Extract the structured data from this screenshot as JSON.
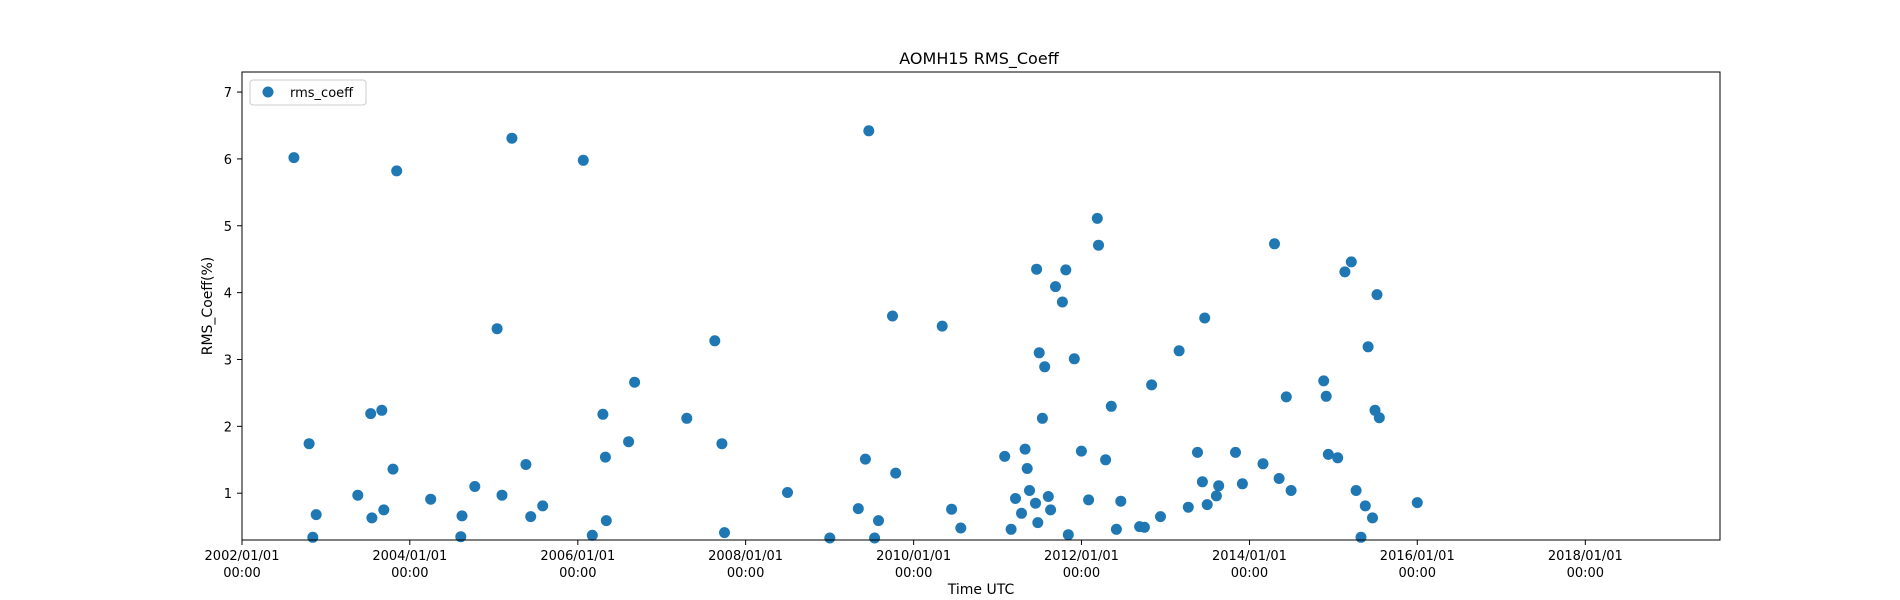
{
  "chart_data": {
    "type": "scatter",
    "title": "AOMH15 RMS_Coeff",
    "xlabel": "Time UTC",
    "ylabel": "RMS_Coeff(%)",
    "legend": {
      "placement": "top-left",
      "entries": [
        "rms_coeff"
      ]
    },
    "grid": false,
    "marker_color": "#1f77b4",
    "xlim": [
      "2002-01-01",
      "2019-08-10"
    ],
    "ylim": [
      0.3,
      7.3
    ],
    "xticks": [
      {
        "value": "2002-01-01",
        "date": "2002/01/01",
        "time": "00:00"
      },
      {
        "value": "2004-01-01",
        "date": "2004/01/01",
        "time": "00:00"
      },
      {
        "value": "2006-01-01",
        "date": "2006/01/01",
        "time": "00:00"
      },
      {
        "value": "2008-01-01",
        "date": "2008/01/01",
        "time": "00:00"
      },
      {
        "value": "2010-01-01",
        "date": "2010/01/01",
        "time": "00:00"
      },
      {
        "value": "2012-01-01",
        "date": "2012/01/01",
        "time": "00:00"
      },
      {
        "value": "2014-01-01",
        "date": "2014/01/01",
        "time": "00:00"
      },
      {
        "value": "2016-01-01",
        "date": "2016/01/01",
        "time": "00:00"
      },
      {
        "value": "2018-01-01",
        "date": "2018/01/01",
        "time": "00:00"
      }
    ],
    "yticks": [
      1,
      2,
      3,
      4,
      5,
      6,
      7
    ],
    "series": [
      {
        "name": "rms_coeff",
        "points": [
          [
            "2002-08-15",
            6.02
          ],
          [
            "2002-10-20",
            1.74
          ],
          [
            "2002-11-05",
            0.34
          ],
          [
            "2002-11-20",
            0.68
          ],
          [
            "2003-05-20",
            0.97
          ],
          [
            "2003-07-15",
            2.19
          ],
          [
            "2003-07-20",
            0.63
          ],
          [
            "2003-09-01",
            2.24
          ],
          [
            "2003-09-10",
            0.75
          ],
          [
            "2003-10-20",
            1.36
          ],
          [
            "2003-11-05",
            5.82
          ],
          [
            "2004-04-01",
            0.91
          ],
          [
            "2004-08-10",
            0.35
          ],
          [
            "2004-08-15",
            0.66
          ],
          [
            "2004-10-10",
            1.1
          ],
          [
            "2005-01-15",
            3.46
          ],
          [
            "2005-02-05",
            0.97
          ],
          [
            "2005-03-20",
            6.31
          ],
          [
            "2005-05-20",
            1.43
          ],
          [
            "2005-06-10",
            0.65
          ],
          [
            "2005-08-01",
            0.81
          ],
          [
            "2006-01-25",
            5.98
          ],
          [
            "2006-03-05",
            0.37
          ],
          [
            "2006-04-20",
            2.18
          ],
          [
            "2006-05-01",
            1.54
          ],
          [
            "2006-05-05",
            0.59
          ],
          [
            "2006-08-10",
            1.77
          ],
          [
            "2006-09-05",
            2.66
          ],
          [
            "2007-04-20",
            2.12
          ],
          [
            "2007-08-20",
            3.28
          ],
          [
            "2007-09-20",
            1.74
          ],
          [
            "2007-10-01",
            0.41
          ],
          [
            "2008-07-01",
            1.01
          ],
          [
            "2009-01-01",
            0.33
          ],
          [
            "2009-05-05",
            0.77
          ],
          [
            "2009-06-05",
            1.51
          ],
          [
            "2009-06-20",
            6.42
          ],
          [
            "2009-07-15",
            0.33
          ],
          [
            "2009-08-01",
            0.59
          ],
          [
            "2009-10-01",
            3.65
          ],
          [
            "2009-10-15",
            1.3
          ],
          [
            "2010-05-05",
            3.5
          ],
          [
            "2010-06-15",
            0.76
          ],
          [
            "2010-07-25",
            0.48
          ],
          [
            "2011-02-01",
            1.55
          ],
          [
            "2011-03-01",
            0.46
          ],
          [
            "2011-03-20",
            0.92
          ],
          [
            "2011-04-15",
            0.7
          ],
          [
            "2011-05-01",
            1.66
          ],
          [
            "2011-05-10",
            1.37
          ],
          [
            "2011-05-20",
            1.04
          ],
          [
            "2011-06-15",
            0.85
          ],
          [
            "2011-06-20",
            4.35
          ],
          [
            "2011-06-25",
            0.56
          ],
          [
            "2011-07-01",
            3.1
          ],
          [
            "2011-07-15",
            2.12
          ],
          [
            "2011-07-25",
            2.89
          ],
          [
            "2011-08-10",
            0.95
          ],
          [
            "2011-08-20",
            0.75
          ],
          [
            "2011-09-10",
            4.09
          ],
          [
            "2011-10-10",
            3.86
          ],
          [
            "2011-10-25",
            4.34
          ],
          [
            "2011-11-05",
            0.38
          ],
          [
            "2011-12-01",
            3.01
          ],
          [
            "2012-01-01",
            1.63
          ],
          [
            "2012-02-01",
            0.9
          ],
          [
            "2012-03-10",
            5.11
          ],
          [
            "2012-03-15",
            4.71
          ],
          [
            "2012-04-15",
            1.5
          ],
          [
            "2012-05-10",
            2.3
          ],
          [
            "2012-06-01",
            0.46
          ],
          [
            "2012-06-20",
            0.88
          ],
          [
            "2012-09-10",
            0.5
          ],
          [
            "2012-10-01",
            0.49
          ],
          [
            "2012-11-01",
            2.62
          ],
          [
            "2012-12-10",
            0.65
          ],
          [
            "2013-03-01",
            3.13
          ],
          [
            "2013-04-10",
            0.79
          ],
          [
            "2013-05-20",
            1.61
          ],
          [
            "2013-06-10",
            1.17
          ],
          [
            "2013-06-20",
            3.62
          ],
          [
            "2013-07-01",
            0.83
          ],
          [
            "2013-08-10",
            0.96
          ],
          [
            "2013-08-20",
            1.11
          ],
          [
            "2013-11-01",
            1.61
          ],
          [
            "2013-12-01",
            1.14
          ],
          [
            "2014-03-01",
            1.44
          ],
          [
            "2014-04-20",
            4.73
          ],
          [
            "2014-05-10",
            1.22
          ],
          [
            "2014-06-10",
            2.44
          ],
          [
            "2014-07-01",
            1.04
          ],
          [
            "2014-11-20",
            2.68
          ],
          [
            "2014-12-01",
            2.45
          ],
          [
            "2014-12-10",
            1.58
          ],
          [
            "2015-01-20",
            1.53
          ],
          [
            "2015-02-20",
            4.31
          ],
          [
            "2015-03-20",
            4.46
          ],
          [
            "2015-04-10",
            1.04
          ],
          [
            "2015-05-01",
            0.34
          ],
          [
            "2015-05-20",
            0.81
          ],
          [
            "2015-06-01",
            3.19
          ],
          [
            "2015-06-20",
            0.63
          ],
          [
            "2015-07-01",
            2.24
          ],
          [
            "2015-07-10",
            3.97
          ],
          [
            "2015-07-20",
            2.13
          ],
          [
            "2016-01-01",
            0.86
          ]
        ]
      }
    ]
  }
}
